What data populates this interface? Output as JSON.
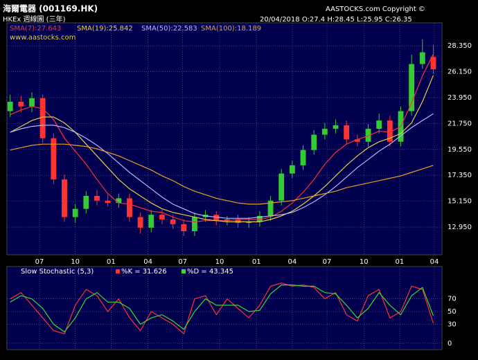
{
  "chart_data": [
    {
      "type": "candlestick",
      "title": "海爾電器 (001169.HK)",
      "subtitle": "HKEx 週線圖 (三年)",
      "copyright": "AASTOCKS.com Copyright ©",
      "quote": "20/04/2018  O:27.4  H:28.45  L:25.95  C:26.35",
      "watermark": "www.aastocks.com",
      "up_color": "#33cc33",
      "down_color": "#ff3333",
      "open": [
        22.8,
        23.6,
        23.2,
        23.9,
        20.5,
        17.0,
        13.8,
        14.5,
        15.6,
        15.2,
        15.0,
        15.4,
        13.8,
        12.9,
        14.0,
        13.6,
        13.2,
        12.6,
        13.8,
        14.0,
        13.5,
        13.6,
        13.3,
        13.4,
        13.9,
        15.2,
        17.5,
        18.2,
        19.5,
        20.8,
        21.3,
        21.6,
        20.4,
        20.2,
        21.3,
        22.0,
        20.2,
        22.8,
        26.8,
        27.4
      ],
      "high": [
        24.2,
        24.1,
        24.4,
        24.2,
        20.9,
        17.4,
        14.9,
        16.0,
        16.1,
        15.7,
        15.8,
        15.8,
        14.2,
        14.4,
        14.4,
        14.0,
        13.6,
        14.2,
        14.4,
        14.3,
        13.9,
        14.0,
        13.8,
        14.3,
        15.6,
        17.9,
        18.6,
        19.9,
        21.2,
        21.8,
        22.1,
        22.0,
        20.8,
        21.7,
        22.6,
        22.4,
        23.2,
        27.6,
        28.9,
        28.45
      ],
      "low": [
        22.3,
        22.7,
        22.7,
        20.1,
        16.6,
        13.4,
        13.3,
        14.1,
        14.8,
        14.7,
        14.6,
        13.4,
        12.4,
        12.5,
        13.2,
        12.8,
        12.2,
        12.2,
        13.4,
        13.1,
        13.1,
        12.9,
        12.9,
        13.0,
        13.5,
        14.8,
        17.1,
        17.8,
        19.1,
        20.4,
        20.9,
        20.0,
        19.8,
        19.8,
        20.9,
        19.8,
        19.8,
        22.4,
        26.4,
        25.95
      ],
      "close": [
        23.6,
        23.2,
        23.9,
        20.5,
        17.0,
        13.8,
        14.5,
        15.6,
        15.2,
        15.0,
        15.4,
        13.8,
        12.9,
        14.0,
        13.6,
        13.2,
        12.6,
        13.8,
        14.0,
        13.5,
        13.6,
        13.3,
        13.4,
        13.9,
        15.2,
        17.5,
        18.2,
        19.5,
        20.8,
        21.3,
        21.6,
        20.4,
        20.2,
        21.3,
        22.0,
        20.2,
        22.8,
        26.8,
        27.8,
        26.35
      ],
      "series": [
        {
          "name": "SMA(7):27.643",
          "color": "#ff3030",
          "values": [
            22.5,
            22.9,
            23.2,
            23.0,
            22.1,
            20.5,
            19.4,
            18.3,
            17.0,
            15.8,
            15.0,
            14.9,
            14.6,
            14.3,
            14.2,
            13.8,
            13.5,
            13.4,
            13.5,
            13.5,
            13.5,
            13.6,
            13.6,
            13.6,
            13.8,
            14.3,
            15.0,
            15.9,
            17.0,
            18.3,
            19.3,
            20.0,
            20.4,
            20.7,
            21.1,
            21.0,
            21.5,
            23.5,
            25.8,
            27.643
          ]
        },
        {
          "name": "SMA(19):25.842",
          "color": "#e8d040",
          "values": [
            21.0,
            21.5,
            22.0,
            22.3,
            22.3,
            21.8,
            21.0,
            20.0,
            19.0,
            18.0,
            17.0,
            16.2,
            15.6,
            15.0,
            14.5,
            14.2,
            14.0,
            13.8,
            13.6,
            13.5,
            13.4,
            13.4,
            13.4,
            13.4,
            13.6,
            13.9,
            14.3,
            14.9,
            15.6,
            16.4,
            17.3,
            18.2,
            19.0,
            19.7,
            20.2,
            20.5,
            20.9,
            21.8,
            23.6,
            25.842
          ]
        },
        {
          "name": "SMA(50):22.583",
          "color": "#b8b8f0",
          "values": [
            21.0,
            21.3,
            21.5,
            21.6,
            21.6,
            21.4,
            21.0,
            20.5,
            19.9,
            19.2,
            18.4,
            17.6,
            16.9,
            16.2,
            15.5,
            14.9,
            14.5,
            14.1,
            13.9,
            13.8,
            13.7,
            13.7,
            13.7,
            13.8,
            13.9,
            14.0,
            14.2,
            14.6,
            15.1,
            15.7,
            16.4,
            17.2,
            18.0,
            18.7,
            19.4,
            20.0,
            20.7,
            21.4,
            22.0,
            22.583
          ]
        },
        {
          "name": "SMA(100):18.189",
          "color": "#f0a020",
          "values": [
            19.5,
            19.7,
            19.9,
            20.0,
            20.0,
            20.0,
            19.9,
            19.8,
            19.6,
            19.3,
            19.0,
            18.6,
            18.2,
            17.8,
            17.3,
            16.9,
            16.4,
            16.0,
            15.7,
            15.4,
            15.2,
            15.0,
            14.9,
            14.9,
            15.0,
            15.1,
            15.2,
            15.4,
            15.6,
            15.8,
            16.0,
            16.3,
            16.5,
            16.7,
            16.9,
            17.1,
            17.3,
            17.6,
            17.9,
            18.189
          ]
        }
      ],
      "xlim": [
        -0.3,
        39.8
      ],
      "xticks": [
        {
          "value": 2.7,
          "label": "07"
        },
        {
          "value": 6.0,
          "label": "10"
        },
        {
          "value": 9.3,
          "label": "01"
        },
        {
          "value": 12.7,
          "label": "04"
        },
        {
          "value": 15.9,
          "label": "07"
        },
        {
          "value": 19.3,
          "label": "10"
        },
        {
          "value": 22.7,
          "label": "01"
        },
        {
          "value": 26.0,
          "label": "04"
        },
        {
          "value": 29.2,
          "label": "07"
        },
        {
          "value": 32.6,
          "label": "10"
        },
        {
          "value": 35.9,
          "label": "01"
        },
        {
          "value": 39.1,
          "label": "04"
        }
      ],
      "ylim": [
        10.6,
        30.3
      ],
      "yticks": [
        {
          "value": 12.95,
          "label": "12.950"
        },
        {
          "value": 15.15,
          "label": "15.150"
        },
        {
          "value": 17.35,
          "label": "17.350"
        },
        {
          "value": 19.55,
          "label": "19.550"
        },
        {
          "value": 21.75,
          "label": "21.750"
        },
        {
          "value": 23.95,
          "label": "23.950"
        },
        {
          "value": 26.15,
          "label": "26.150"
        },
        {
          "value": 28.35,
          "label": "28.350"
        }
      ],
      "grid": true
    },
    {
      "type": "line",
      "title": "Slow Stochastic (5,3)",
      "series": [
        {
          "name": "%K = 31.626",
          "color": "#ff3030",
          "values": [
            70,
            80,
            60,
            40,
            20,
            15,
            60,
            85,
            75,
            50,
            70,
            40,
            20,
            50,
            40,
            30,
            15,
            70,
            75,
            45,
            70,
            55,
            40,
            60,
            90,
            95,
            90,
            92,
            88,
            70,
            80,
            45,
            35,
            75,
            85,
            40,
            50,
            90,
            85,
            31.626
          ]
        },
        {
          "name": "%D = 43.345",
          "color": "#33dd33",
          "values": [
            65,
            75,
            70,
            55,
            30,
            18,
            40,
            70,
            80,
            65,
            65,
            55,
            30,
            40,
            45,
            35,
            22,
            50,
            70,
            60,
            60,
            60,
            50,
            52,
            78,
            92,
            92,
            90,
            90,
            80,
            78,
            60,
            40,
            55,
            80,
            60,
            45,
            75,
            88,
            43.345
          ]
        }
      ],
      "xlim": [
        -0.3,
        39.8
      ],
      "ylim": [
        -10,
        121
      ],
      "yticks": [
        0,
        30,
        50,
        70
      ],
      "grid": true
    }
  ]
}
